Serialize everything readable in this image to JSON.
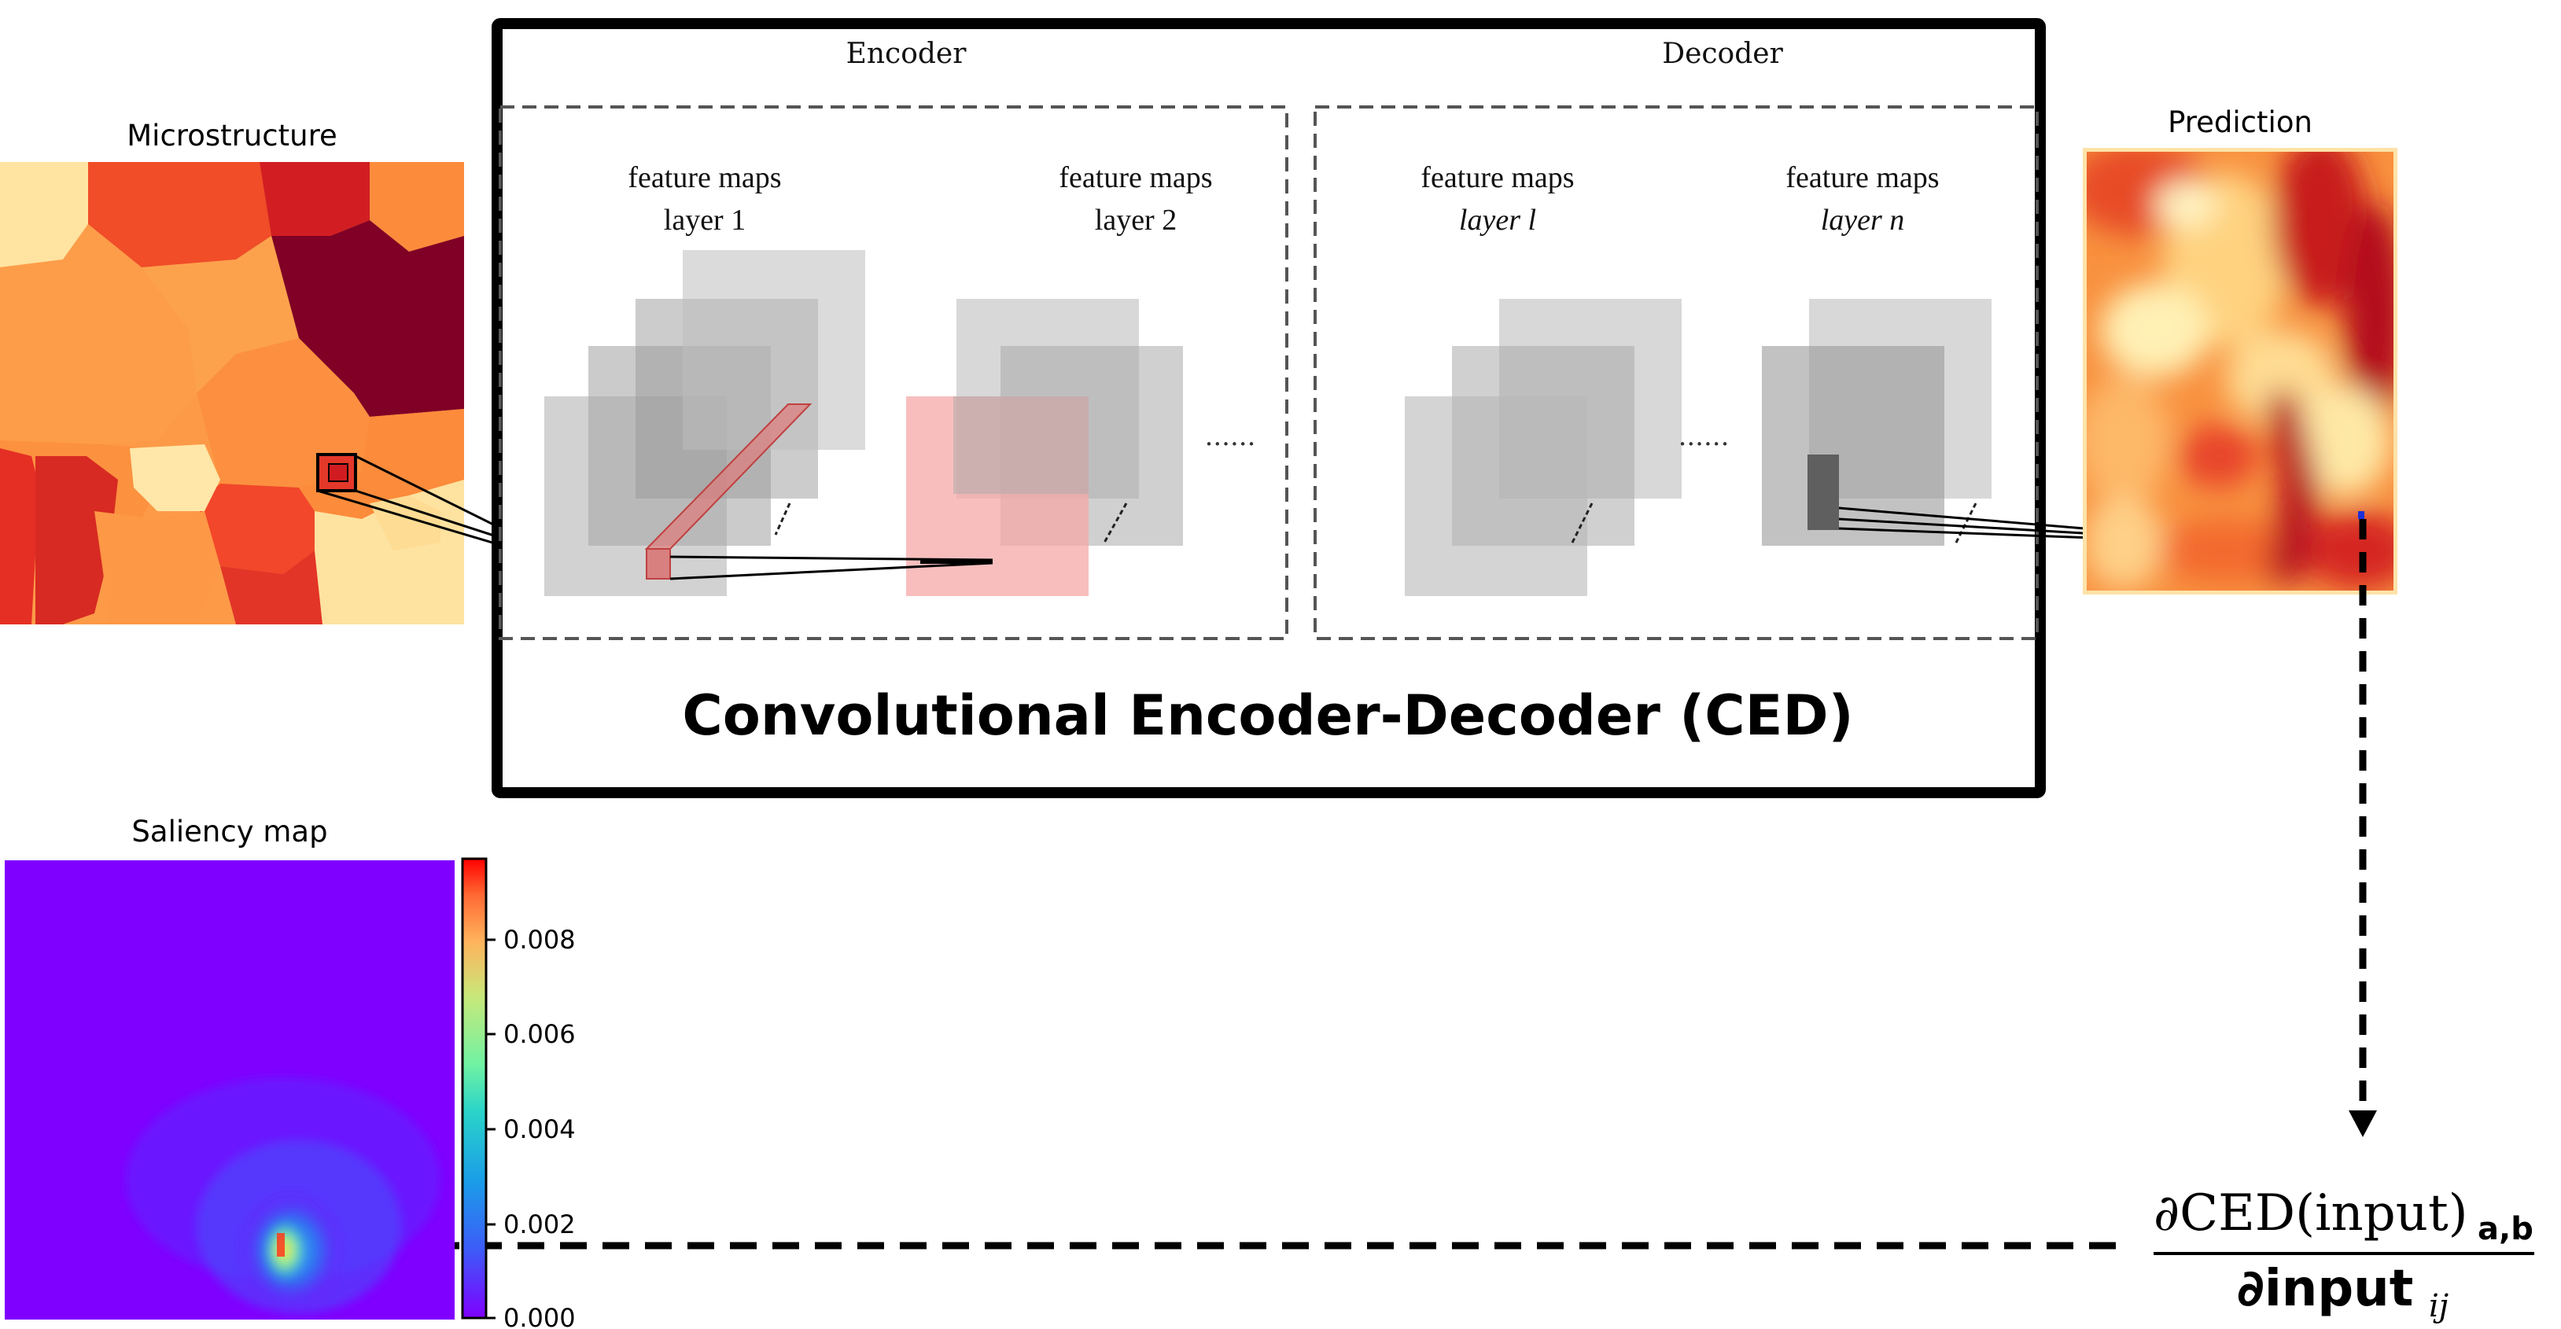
{
  "panels": {
    "microstructure": {
      "title": "Microstructure"
    },
    "prediction": {
      "title": "Prediction"
    },
    "saliency": {
      "title": "Saliency map"
    }
  },
  "ced": {
    "caption": "Convolutional Encoder-Decoder (CED)",
    "encoder": {
      "label": "Encoder",
      "blocks": [
        {
          "line1": "feature maps",
          "line2": "layer 1"
        },
        {
          "line1": "feature maps",
          "line2": "layer 2"
        }
      ]
    },
    "decoder": {
      "label": "Decoder",
      "blocks": [
        {
          "line1": "feature maps",
          "line2": "layer l"
        },
        {
          "line1": "feature maps",
          "line2": "layer n"
        }
      ]
    },
    "ellipsis": "......"
  },
  "colorbar": {
    "ticks": [
      "0.008",
      "0.006",
      "0.004",
      "0.002",
      "0.000"
    ]
  },
  "formula": {
    "numerator": "∂CED(input)",
    "numerator_sub": "a,b",
    "denominator": "∂input",
    "denominator_sub": "ij"
  },
  "colors": {
    "frame": "#000000",
    "dashed_box": "#555555",
    "arrow": "#000000",
    "saliency_bg": "#7f00ff"
  }
}
